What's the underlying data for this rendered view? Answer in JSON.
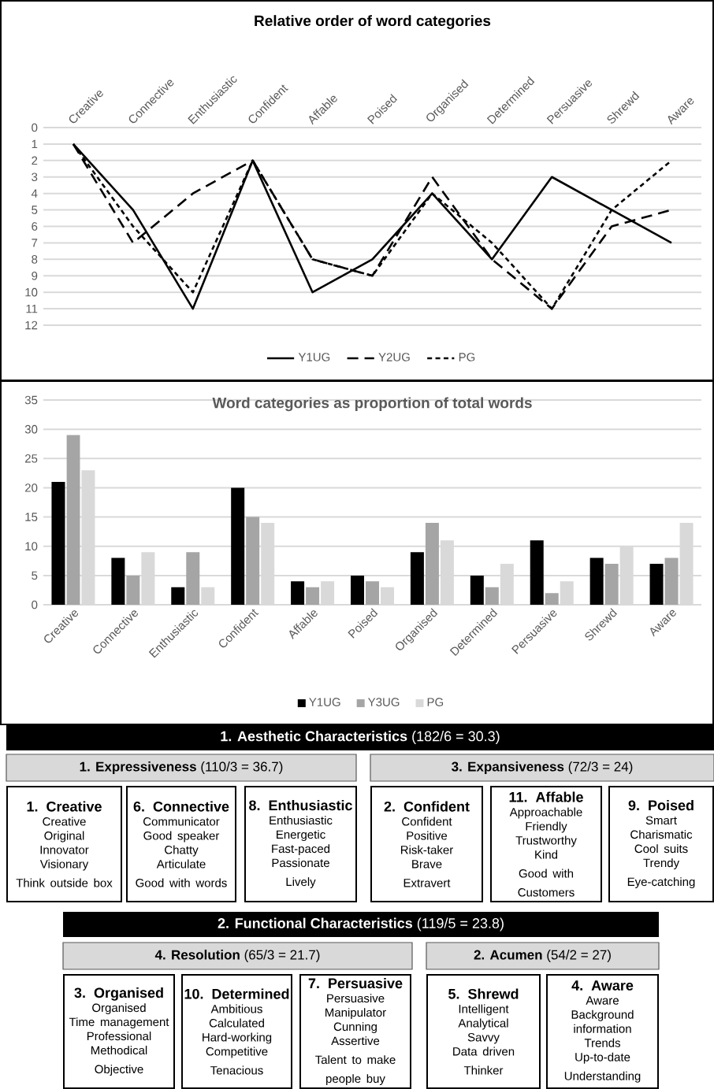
{
  "chart_data": [
    {
      "type": "line",
      "title": "Relative order of word categories",
      "categories": [
        "Creative",
        "Connective",
        "Enthusiastic",
        "Confident",
        "Affable",
        "Poised",
        "Organised",
        "Determined",
        "Persuasive",
        "Shrewd",
        "Aware"
      ],
      "ylim": [
        12,
        0
      ],
      "yticks": [
        0,
        1,
        2,
        3,
        4,
        5,
        6,
        7,
        8,
        9,
        10,
        11,
        12
      ],
      "grid": "y",
      "legend": "bottom",
      "series": [
        {
          "name": "Y1UG",
          "color": "#000000",
          "line_style": "solid",
          "values": [
            1,
            5,
            11,
            2,
            10,
            8,
            4,
            8,
            3,
            5,
            7
          ]
        },
        {
          "name": "Y2UG",
          "color": "#000000",
          "line_style": "dashed",
          "values": [
            1,
            7,
            4,
            2,
            8,
            9,
            3,
            8,
            11,
            6,
            5
          ]
        },
        {
          "name": "PG",
          "color": "#000000",
          "line_style": "dotted",
          "values": [
            1,
            6,
            10,
            2,
            8,
            9,
            4,
            7,
            11,
            5,
            2
          ]
        }
      ]
    },
    {
      "type": "bar",
      "title": "Word categories as proportion of total words",
      "categories": [
        "Creative",
        "Connective",
        "Enthusiastic",
        "Confident",
        "Affable",
        "Poised",
        "Organised",
        "Determined",
        "Persuasive",
        "Shrewd",
        "Aware"
      ],
      "ylim": [
        0,
        35
      ],
      "yticks": [
        0,
        5,
        10,
        15,
        20,
        25,
        30,
        35
      ],
      "grid": "y",
      "legend": "bottom",
      "series": [
        {
          "name": "Y1UG",
          "color": "#000000",
          "values": [
            21,
            8,
            3,
            20,
            4,
            5,
            9,
            5,
            11,
            8,
            7
          ]
        },
        {
          "name": "Y3UG",
          "color": "#a5a5a5",
          "values": [
            29,
            5,
            9,
            15,
            3,
            4,
            14,
            3,
            2,
            7,
            8
          ]
        },
        {
          "name": "PG",
          "color": "#d9d9d9",
          "values": [
            23,
            9,
            3,
            14,
            4,
            3,
            11,
            7,
            4,
            10,
            14
          ]
        }
      ]
    },
    {
      "type": "other",
      "annotations": [
        "**1. Aesthetic Characteristics** (182/6 = 30.3)",
        "**1. Expressiveness** (110/3 = 36.7)",
        "**3. Expansiveness** (72/3 = 24)",
        "1. Creative",
        "Creative",
        "Original",
        "Innovator",
        "Visionary",
        "Think outside box",
        "6. Connective",
        "Communicator",
        "Good speaker",
        "Chatty",
        "Articulate",
        "Good with words",
        "8. Enthusiastic",
        "Enthusiastic",
        "Energetic",
        "Fast-paced",
        "Passionate",
        "Lively",
        "2. Confident",
        "Confident",
        "Positive",
        "Risk-taker",
        "Brave",
        "Extravert",
        "11. Affable",
        "Approachable",
        "Friendly",
        "Trustworthy",
        "Kind",
        "Good with Customers",
        "9. Poised",
        "Smart",
        "Charismatic",
        "Cool suits",
        "Trendy",
        "Eye-catching",
        "**2. Functional Characteristics** (119/5 = 23.8)",
        "**4. Resolution** (65/3 = 21.7)",
        "**2. Acumen** (54/2 = 27)",
        "3. Organised",
        "Organised",
        "Time management",
        "Professional",
        "Methodical",
        "Objective",
        "10. Determined",
        "Ambitious",
        "Calculated",
        "Hard-working",
        "Competitive",
        "Tenacious",
        "7. Persuasive",
        "Persuasive",
        "Manipulator",
        "Cunning",
        "Assertive",
        "Talent to make people buy",
        "5. Shrewd",
        "Intelligent",
        "Analytical",
        "Savvy",
        "Data driven",
        "Thinker",
        "4. Aware",
        "Aware",
        "Background information",
        "Trends",
        "Up-to-date",
        "Understanding"
      ]
    }
  ]
}
